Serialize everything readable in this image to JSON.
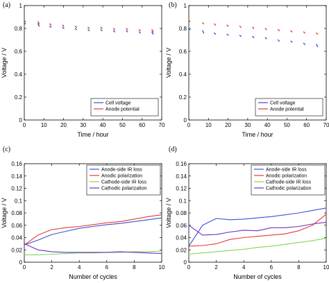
{
  "chart_data": [
    {
      "panel_label": "(a)",
      "type": "line",
      "xlabel": "Time / hour",
      "ylabel": "Voltage / V",
      "xlim": [
        0,
        70
      ],
      "ylim": [
        0,
        1.0
      ],
      "xticks": [
        0,
        10,
        20,
        30,
        40,
        50,
        60,
        70
      ],
      "yticks": [
        0,
        0.2,
        0.4,
        0.6,
        0.8,
        1.0
      ],
      "ytick_labels": [
        "0",
        "0.2",
        "0.4",
        "0.6",
        "0.8",
        "1"
      ],
      "legend": "bottom-right",
      "series": [
        {
          "name": "Cell voltage",
          "color": "#3b4fd8",
          "segments": [
            [
              [
                0,
                0.85
              ],
              [
                0.6,
                0.84
              ]
            ],
            [
              [
                7,
                0.84
              ],
              [
                7.6,
                0.82
              ]
            ],
            [
              [
                13,
                0.82
              ],
              [
                13.6,
                0.81
              ]
            ],
            [
              [
                19.5,
                0.81
              ],
              [
                20.1,
                0.8
              ]
            ],
            [
              [
                26,
                0.8
              ],
              [
                26.6,
                0.79
              ]
            ],
            [
              [
                32.5,
                0.79
              ],
              [
                33.1,
                0.78
              ]
            ],
            [
              [
                39,
                0.79
              ],
              [
                39.6,
                0.78
              ]
            ],
            [
              [
                45.5,
                0.78
              ],
              [
                46.1,
                0.77
              ]
            ],
            [
              [
                52,
                0.78
              ],
              [
                52.6,
                0.77
              ]
            ],
            [
              [
                58.5,
                0.77
              ],
              [
                59.1,
                0.76
              ]
            ],
            [
              [
                65,
                0.77
              ],
              [
                65.6,
                0.75
              ]
            ]
          ]
        },
        {
          "name": "Anode potential",
          "color": "#e53935",
          "segments": [
            [
              [
                0,
                0.87
              ],
              [
                0.6,
                0.86
              ]
            ],
            [
              [
                7,
                0.86
              ],
              [
                7.6,
                0.84
              ]
            ],
            [
              [
                13,
                0.84
              ],
              [
                13.6,
                0.83
              ]
            ],
            [
              [
                19.5,
                0.83
              ],
              [
                20.1,
                0.82
              ]
            ],
            [
              [
                26,
                0.82
              ],
              [
                26.6,
                0.81
              ]
            ],
            [
              [
                32.5,
                0.81
              ],
              [
                33.1,
                0.8
              ]
            ],
            [
              [
                39,
                0.81
              ],
              [
                39.6,
                0.8
              ]
            ],
            [
              [
                45.5,
                0.8
              ],
              [
                46.1,
                0.79
              ]
            ],
            [
              [
                52,
                0.8
              ],
              [
                52.6,
                0.79
              ]
            ],
            [
              [
                58.5,
                0.79
              ],
              [
                59.1,
                0.78
              ]
            ],
            [
              [
                65,
                0.79
              ],
              [
                65.6,
                0.77
              ]
            ]
          ]
        }
      ]
    },
    {
      "panel_label": "(b)",
      "type": "line",
      "xlabel": "Time / hour",
      "ylabel": "Voltage / V",
      "xlim": [
        0,
        70
      ],
      "ylim": [
        0,
        1.0
      ],
      "xticks": [
        0,
        10,
        20,
        30,
        40,
        50,
        60,
        70
      ],
      "yticks": [
        0,
        0.2,
        0.4,
        0.6,
        0.8,
        1.0
      ],
      "ytick_labels": [
        "0",
        "0.2",
        "0.4",
        "0.6",
        "0.8",
        "1"
      ],
      "legend": "bottom-right",
      "series": [
        {
          "name": "Cell voltage",
          "color": "#3b4fd8",
          "segments": [
            [
              [
                0,
                0.8
              ],
              [
                0.6,
                0.79
              ]
            ],
            [
              [
                7,
                0.78
              ],
              [
                7.6,
                0.76
              ]
            ],
            [
              [
                13,
                0.76
              ],
              [
                13.6,
                0.75
              ]
            ],
            [
              [
                19.5,
                0.75
              ],
              [
                20.1,
                0.74
              ]
            ],
            [
              [
                26,
                0.74
              ],
              [
                26.6,
                0.73
              ]
            ],
            [
              [
                32.5,
                0.73
              ],
              [
                33.1,
                0.72
              ]
            ],
            [
              [
                39,
                0.72
              ],
              [
                39.6,
                0.71
              ]
            ],
            [
              [
                45.5,
                0.7
              ],
              [
                46.1,
                0.69
              ]
            ],
            [
              [
                52,
                0.69
              ],
              [
                52.6,
                0.68
              ]
            ],
            [
              [
                58.5,
                0.67
              ],
              [
                59.1,
                0.66
              ]
            ],
            [
              [
                65,
                0.66
              ],
              [
                65.6,
                0.64
              ]
            ]
          ]
        },
        {
          "name": "Anode potential",
          "color": "#e53935",
          "segments": [
            [
              [
                0,
                0.87
              ],
              [
                0.6,
                0.86
              ]
            ],
            [
              [
                7,
                0.85
              ],
              [
                7.6,
                0.84
              ]
            ],
            [
              [
                13,
                0.84
              ],
              [
                13.6,
                0.83
              ]
            ],
            [
              [
                19.5,
                0.83
              ],
              [
                20.1,
                0.82
              ]
            ],
            [
              [
                26,
                0.82
              ],
              [
                26.6,
                0.81
              ]
            ],
            [
              [
                32.5,
                0.81
              ],
              [
                33.1,
                0.8
              ]
            ],
            [
              [
                39,
                0.8
              ],
              [
                39.6,
                0.79
              ]
            ],
            [
              [
                45.5,
                0.79
              ],
              [
                46.1,
                0.78
              ]
            ],
            [
              [
                52,
                0.78
              ],
              [
                52.6,
                0.77
              ]
            ],
            [
              [
                58.5,
                0.77
              ],
              [
                59.1,
                0.76
              ]
            ],
            [
              [
                65,
                0.76
              ],
              [
                65.6,
                0.75
              ]
            ]
          ]
        }
      ]
    },
    {
      "panel_label": "(c)",
      "type": "line",
      "xlabel": "Number of cycles",
      "ylabel": "Voltage / V",
      "xlim": [
        0,
        10
      ],
      "ylim": [
        0,
        0.16
      ],
      "xticks": [
        0,
        2,
        4,
        6,
        8,
        10
      ],
      "yticks": [
        0,
        0.02,
        0.04,
        0.06,
        0.08,
        0.1,
        0.12,
        0.14,
        0.16
      ],
      "ytick_labels": [
        "0",
        "0.02",
        "0.04",
        "0.06",
        "0.08",
        "0.1",
        "0.12",
        "0.14",
        "0.16"
      ],
      "legend": "top-right",
      "series": [
        {
          "name": "Anode-side IR loss",
          "color": "#3b4fd8",
          "x": [
            0,
            1,
            2,
            3,
            4,
            5,
            6,
            7,
            8,
            9,
            10
          ],
          "y": [
            0.028,
            0.036,
            0.045,
            0.05,
            0.055,
            0.058,
            0.061,
            0.063,
            0.066,
            0.069,
            0.072
          ]
        },
        {
          "name": "Anodic polarization",
          "color": "#e53935",
          "x": [
            0,
            1,
            2,
            3,
            4,
            5,
            6,
            7,
            8,
            9,
            10
          ],
          "y": [
            0.028,
            0.044,
            0.053,
            0.056,
            0.058,
            0.061,
            0.064,
            0.066,
            0.07,
            0.074,
            0.077
          ]
        },
        {
          "name": "Cathode-side IR loss",
          "color": "#7ed957",
          "x": [
            0,
            1,
            2,
            3,
            4,
            5,
            6,
            7,
            8,
            9,
            10
          ],
          "y": [
            0.012,
            0.012,
            0.013,
            0.014,
            0.015,
            0.015,
            0.016,
            0.016,
            0.017,
            0.017,
            0.018
          ]
        },
        {
          "name": "Cathodic polarization",
          "color": "#6a2ec8",
          "x": [
            0,
            1,
            2,
            3,
            4,
            5,
            6,
            7,
            8,
            9,
            10
          ],
          "y": [
            0.03,
            0.02,
            0.017,
            0.016,
            0.016,
            0.016,
            0.016,
            0.017,
            0.016,
            0.015,
            0.014
          ]
        }
      ]
    },
    {
      "panel_label": "(d)",
      "type": "line",
      "xlabel": "Number of cycles",
      "ylabel": "Voltage / V",
      "xlim": [
        0,
        10
      ],
      "ylim": [
        0,
        0.16
      ],
      "xticks": [
        0,
        2,
        4,
        6,
        8,
        10
      ],
      "yticks": [
        0,
        0.02,
        0.04,
        0.06,
        0.08,
        0.1,
        0.12,
        0.14,
        0.16
      ],
      "ytick_labels": [
        "0",
        "0.02",
        "0.04",
        "0.06",
        "0.08",
        "0.1",
        "0.12",
        "0.14",
        "0.16"
      ],
      "legend": "top-right",
      "series": [
        {
          "name": "Anode-side IR loss",
          "color": "#3b4fd8",
          "x": [
            0,
            1,
            2,
            3,
            4,
            5,
            6,
            7,
            8,
            9,
            10
          ],
          "y": [
            0.026,
            0.06,
            0.071,
            0.069,
            0.07,
            0.072,
            0.074,
            0.077,
            0.08,
            0.084,
            0.088
          ]
        },
        {
          "name": "Anodic polarization",
          "color": "#e53935",
          "x": [
            0,
            1,
            2,
            3,
            4,
            5,
            6,
            7,
            8,
            9,
            10
          ],
          "y": [
            0.026,
            0.027,
            0.03,
            0.037,
            0.04,
            0.042,
            0.044,
            0.046,
            0.051,
            0.06,
            0.078
          ]
        },
        {
          "name": "Cathode-side IR loss",
          "color": "#7ed957",
          "x": [
            0,
            1,
            2,
            3,
            4,
            5,
            6,
            7,
            8,
            9,
            10
          ],
          "y": [
            0.013,
            0.015,
            0.017,
            0.019,
            0.021,
            0.024,
            0.026,
            0.029,
            0.032,
            0.035,
            0.039
          ]
        },
        {
          "name": "Cathodic polarization",
          "color": "#6a2ec8",
          "x": [
            0,
            1,
            2,
            3,
            4,
            5,
            6,
            7,
            8,
            9,
            10
          ],
          "y": [
            0.06,
            0.044,
            0.045,
            0.049,
            0.052,
            0.051,
            0.056,
            0.056,
            0.058,
            0.062,
            0.065
          ]
        }
      ]
    }
  ]
}
